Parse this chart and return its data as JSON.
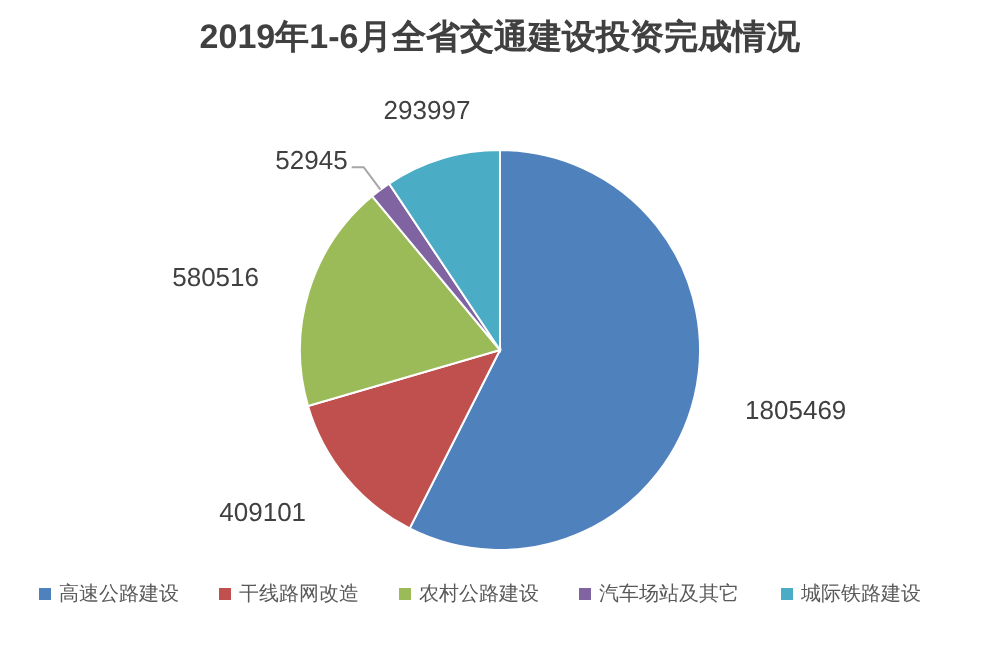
{
  "chart_data": {
    "type": "pie",
    "title": "2019年1-6月全省交通建设投资完成情况",
    "categories": [
      "高速公路建设",
      "干线路网改造",
      "农村公路建设",
      "汽车场站及其它",
      "城际铁路建设"
    ],
    "values": [
      1805469,
      409101,
      580516,
      52945,
      293997
    ],
    "colors": [
      "#4f81bd",
      "#c0504d",
      "#9bbb59",
      "#8064a2",
      "#4bacc6"
    ],
    "data_labels": true,
    "legend": "bottom"
  }
}
